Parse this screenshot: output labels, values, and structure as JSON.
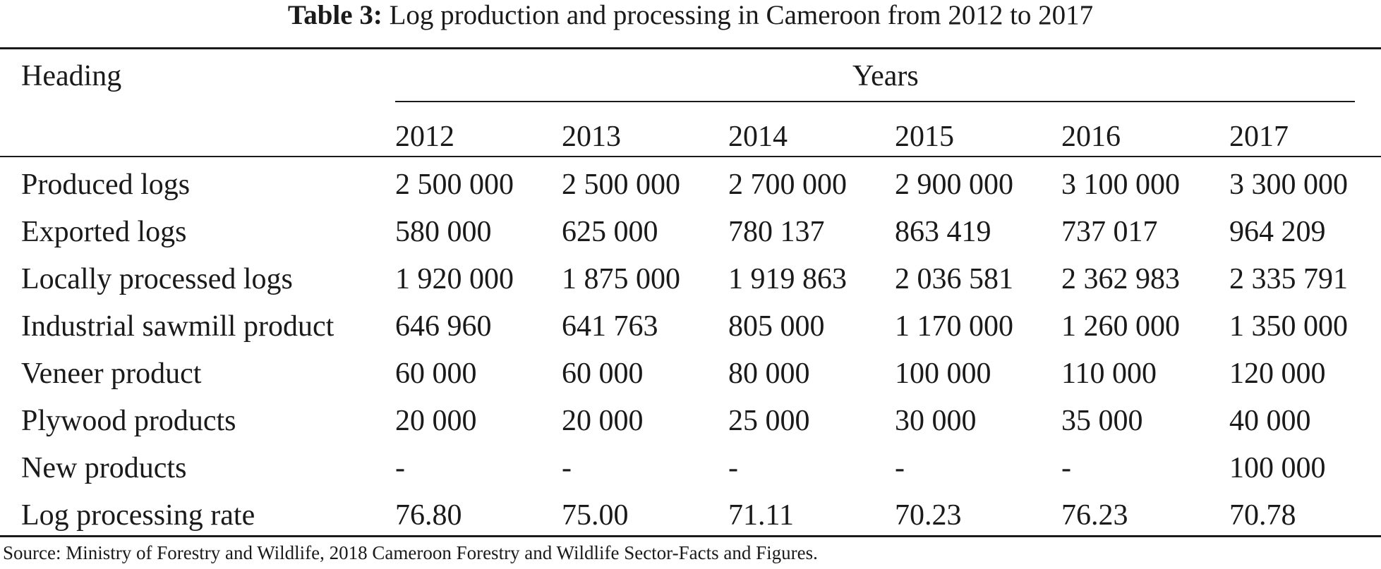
{
  "caption": {
    "label": "Table 3:",
    "text": "Log production and processing in Cameroon from 2012 to 2017"
  },
  "table": {
    "heading_label": "Heading",
    "years_label": "Years",
    "years": [
      "2012",
      "2013",
      "2014",
      "2015",
      "2016",
      "2017"
    ],
    "rows": [
      {
        "label": "Produced logs",
        "values": [
          "2 500 000",
          "2 500 000",
          "2 700 000",
          "2 900 000",
          "3 100 000",
          "3 300 000"
        ]
      },
      {
        "label": "Exported logs",
        "values": [
          "580 000",
          "625 000",
          "780 137",
          "863 419",
          "737 017",
          "964 209"
        ]
      },
      {
        "label": "Locally processed logs",
        "values": [
          "1 920 000",
          "1 875 000",
          "1 919 863",
          "2 036 581",
          "2 362 983",
          "2 335 791"
        ]
      },
      {
        "label": "Industrial sawmill product",
        "values": [
          "646 960",
          "641 763",
          "805 000",
          "1 170 000",
          "1 260 000",
          "1 350 000"
        ]
      },
      {
        "label": "Veneer product",
        "values": [
          "60 000",
          "60 000",
          "80 000",
          "100 000",
          "110 000",
          "120 000"
        ]
      },
      {
        "label": "Plywood products",
        "values": [
          "20 000",
          "20 000",
          "25 000",
          "30 000",
          "35 000",
          "40 000"
        ]
      },
      {
        "label": "New products",
        "values": [
          "-",
          "-",
          "-",
          "-",
          "-",
          "100 000"
        ]
      },
      {
        "label": "Log processing rate",
        "values": [
          "76.80",
          "75.00",
          "71.11",
          "70.23",
          "76.23",
          "70.78"
        ]
      }
    ]
  },
  "source": "Source: Ministry of Forestry and Wildlife, 2018 Cameroon Forestry and Wildlife Sector-Facts and Figures."
}
